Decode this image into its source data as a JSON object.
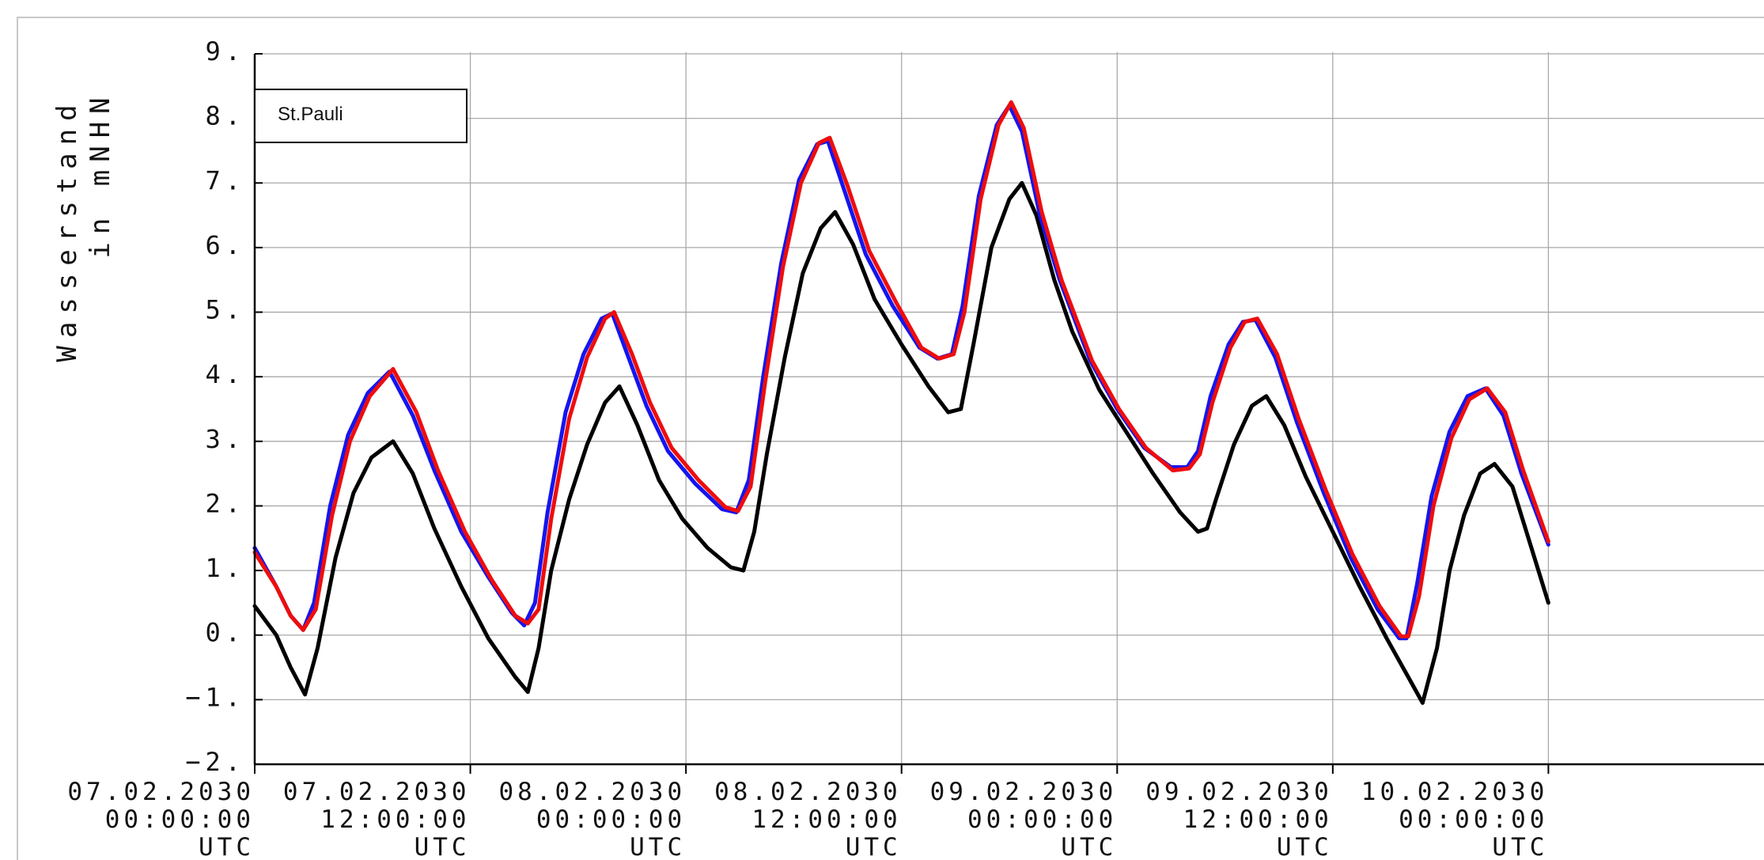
{
  "chart_data": {
    "type": "line",
    "title": "",
    "legend_box_label": "St.Pauli",
    "ylabel_line1": "Wasserstand",
    "ylabel_line2": "in mNHN",
    "ylim": [
      -2,
      9
    ],
    "yticks": [
      {
        "value": -2,
        "label": "−2."
      },
      {
        "value": -1,
        "label": "−1."
      },
      {
        "value": 0,
        "label": "0."
      },
      {
        "value": 1,
        "label": "1."
      },
      {
        "value": 2,
        "label": "2."
      },
      {
        "value": 3,
        "label": "3."
      },
      {
        "value": 4,
        "label": "4."
      },
      {
        "value": 5,
        "label": "5."
      },
      {
        "value": 6,
        "label": "6."
      },
      {
        "value": 7,
        "label": "7."
      },
      {
        "value": 8,
        "label": "8."
      },
      {
        "value": 9,
        "label": "9."
      }
    ],
    "xaxis_unit": "hours",
    "xlim": [
      0,
      84
    ],
    "xticks": [
      {
        "value": 0,
        "date": "07.02.2030",
        "time": "00:00:00",
        "tz": "UTC"
      },
      {
        "value": 12,
        "date": "07.02.2030",
        "time": "12:00:00",
        "tz": "UTC"
      },
      {
        "value": 24,
        "date": "08.02.2030",
        "time": "00:00:00",
        "tz": "UTC"
      },
      {
        "value": 36,
        "date": "08.02.2030",
        "time": "12:00:00",
        "tz": "UTC"
      },
      {
        "value": 48,
        "date": "09.02.2030",
        "time": "00:00:00",
        "tz": "UTC"
      },
      {
        "value": 60,
        "date": "09.02.2030",
        "time": "12:00:00",
        "tz": "UTC"
      },
      {
        "value": 72,
        "date": "10.02.2030",
        "time": "00:00:00",
        "tz": "UTC"
      }
    ],
    "grid": true,
    "series": [
      {
        "color": "#000000",
        "points": [
          [
            0.0,
            0.45
          ],
          [
            1.2,
            0.0
          ],
          [
            2.0,
            -0.5
          ],
          [
            2.8,
            -0.92
          ],
          [
            3.5,
            -0.2
          ],
          [
            4.5,
            1.2
          ],
          [
            5.5,
            2.2
          ],
          [
            6.5,
            2.75
          ],
          [
            7.7,
            3.0
          ],
          [
            8.8,
            2.5
          ],
          [
            10.0,
            1.65
          ],
          [
            11.5,
            0.75
          ],
          [
            13.0,
            -0.05
          ],
          [
            14.5,
            -0.65
          ],
          [
            15.2,
            -0.88
          ],
          [
            15.8,
            -0.2
          ],
          [
            16.5,
            1.0
          ],
          [
            17.5,
            2.1
          ],
          [
            18.5,
            2.95
          ],
          [
            19.5,
            3.6
          ],
          [
            20.3,
            3.85
          ],
          [
            21.3,
            3.25
          ],
          [
            22.5,
            2.4
          ],
          [
            23.8,
            1.8
          ],
          [
            25.2,
            1.35
          ],
          [
            26.5,
            1.05
          ],
          [
            27.2,
            1.0
          ],
          [
            27.8,
            1.6
          ],
          [
            28.5,
            2.8
          ],
          [
            29.5,
            4.3
          ],
          [
            30.5,
            5.6
          ],
          [
            31.5,
            6.3
          ],
          [
            32.3,
            6.55
          ],
          [
            33.3,
            6.05
          ],
          [
            34.5,
            5.2
          ],
          [
            36.0,
            4.5
          ],
          [
            37.5,
            3.85
          ],
          [
            38.6,
            3.45
          ],
          [
            39.3,
            3.5
          ],
          [
            40.0,
            4.5
          ],
          [
            41.0,
            6.0
          ],
          [
            42.0,
            6.75
          ],
          [
            42.7,
            7.0
          ],
          [
            43.5,
            6.5
          ],
          [
            44.5,
            5.5
          ],
          [
            45.5,
            4.7
          ],
          [
            47.0,
            3.8
          ],
          [
            48.5,
            3.15
          ],
          [
            50.0,
            2.5
          ],
          [
            51.5,
            1.9
          ],
          [
            52.5,
            1.6
          ],
          [
            53.0,
            1.65
          ],
          [
            53.5,
            2.1
          ],
          [
            54.5,
            2.95
          ],
          [
            55.5,
            3.55
          ],
          [
            56.3,
            3.7
          ],
          [
            57.3,
            3.25
          ],
          [
            58.5,
            2.45
          ],
          [
            60.0,
            1.6
          ],
          [
            61.5,
            0.75
          ],
          [
            63.0,
            -0.05
          ],
          [
            64.5,
            -0.8
          ],
          [
            65.0,
            -1.05
          ],
          [
            65.8,
            -0.2
          ],
          [
            66.5,
            1.0
          ],
          [
            67.3,
            1.85
          ],
          [
            68.2,
            2.5
          ],
          [
            69.0,
            2.65
          ],
          [
            70.0,
            2.3
          ],
          [
            71.0,
            1.4
          ],
          [
            72.0,
            0.5
          ]
        ]
      },
      {
        "color": "#1515ee",
        "points": [
          [
            0.0,
            1.35
          ],
          [
            1.2,
            0.75
          ],
          [
            2.0,
            0.3
          ],
          [
            2.7,
            0.08
          ],
          [
            3.3,
            0.5
          ],
          [
            4.2,
            2.0
          ],
          [
            5.2,
            3.1
          ],
          [
            6.3,
            3.75
          ],
          [
            7.5,
            4.08
          ],
          [
            8.8,
            3.4
          ],
          [
            10.0,
            2.55
          ],
          [
            11.5,
            1.6
          ],
          [
            13.0,
            0.9
          ],
          [
            14.3,
            0.35
          ],
          [
            15.0,
            0.15
          ],
          [
            15.6,
            0.5
          ],
          [
            16.3,
            1.9
          ],
          [
            17.3,
            3.45
          ],
          [
            18.3,
            4.35
          ],
          [
            19.3,
            4.9
          ],
          [
            19.9,
            4.98
          ],
          [
            20.8,
            4.3
          ],
          [
            21.8,
            3.55
          ],
          [
            23.0,
            2.85
          ],
          [
            24.5,
            2.35
          ],
          [
            26.0,
            1.95
          ],
          [
            26.8,
            1.9
          ],
          [
            27.5,
            2.4
          ],
          [
            28.3,
            4.0
          ],
          [
            29.3,
            5.75
          ],
          [
            30.3,
            7.05
          ],
          [
            31.3,
            7.6
          ],
          [
            31.9,
            7.65
          ],
          [
            32.8,
            6.9
          ],
          [
            34.0,
            5.9
          ],
          [
            35.5,
            5.1
          ],
          [
            37.0,
            4.45
          ],
          [
            38.0,
            4.28
          ],
          [
            38.8,
            4.35
          ],
          [
            39.4,
            5.1
          ],
          [
            40.3,
            6.8
          ],
          [
            41.3,
            7.9
          ],
          [
            42.0,
            8.2
          ],
          [
            42.7,
            7.8
          ],
          [
            43.7,
            6.5
          ],
          [
            44.8,
            5.5
          ],
          [
            46.5,
            4.25
          ],
          [
            48.0,
            3.5
          ],
          [
            49.5,
            2.9
          ],
          [
            51.0,
            2.6
          ],
          [
            51.9,
            2.6
          ],
          [
            52.5,
            2.85
          ],
          [
            53.2,
            3.7
          ],
          [
            54.2,
            4.5
          ],
          [
            55.0,
            4.85
          ],
          [
            55.7,
            4.88
          ],
          [
            56.8,
            4.3
          ],
          [
            58.0,
            3.3
          ],
          [
            59.5,
            2.2
          ],
          [
            61.0,
            1.2
          ],
          [
            62.5,
            0.4
          ],
          [
            63.7,
            -0.05
          ],
          [
            64.1,
            -0.05
          ],
          [
            64.7,
            0.8
          ],
          [
            65.5,
            2.15
          ],
          [
            66.5,
            3.15
          ],
          [
            67.5,
            3.7
          ],
          [
            68.5,
            3.82
          ],
          [
            69.5,
            3.4
          ],
          [
            70.5,
            2.5
          ],
          [
            72.0,
            1.4
          ]
        ]
      },
      {
        "color": "#ee0d0d",
        "points": [
          [
            0.0,
            1.28
          ],
          [
            1.2,
            0.75
          ],
          [
            2.0,
            0.3
          ],
          [
            2.7,
            0.08
          ],
          [
            3.4,
            0.4
          ],
          [
            4.3,
            1.85
          ],
          [
            5.3,
            3.0
          ],
          [
            6.4,
            3.7
          ],
          [
            7.7,
            4.12
          ],
          [
            9.0,
            3.45
          ],
          [
            10.2,
            2.55
          ],
          [
            11.7,
            1.6
          ],
          [
            13.2,
            0.85
          ],
          [
            14.5,
            0.3
          ],
          [
            15.2,
            0.18
          ],
          [
            15.8,
            0.4
          ],
          [
            16.5,
            1.8
          ],
          [
            17.5,
            3.35
          ],
          [
            18.5,
            4.3
          ],
          [
            19.5,
            4.9
          ],
          [
            20.0,
            5.0
          ],
          [
            21.0,
            4.35
          ],
          [
            22.0,
            3.6
          ],
          [
            23.2,
            2.9
          ],
          [
            24.7,
            2.4
          ],
          [
            26.2,
            1.98
          ],
          [
            26.9,
            1.92
          ],
          [
            27.6,
            2.3
          ],
          [
            28.4,
            3.9
          ],
          [
            29.4,
            5.7
          ],
          [
            30.4,
            7.0
          ],
          [
            31.4,
            7.62
          ],
          [
            32.0,
            7.7
          ],
          [
            33.0,
            6.95
          ],
          [
            34.2,
            5.95
          ],
          [
            35.7,
            5.15
          ],
          [
            37.1,
            4.45
          ],
          [
            38.1,
            4.28
          ],
          [
            38.9,
            4.35
          ],
          [
            39.5,
            5.0
          ],
          [
            40.4,
            6.75
          ],
          [
            41.4,
            7.9
          ],
          [
            42.1,
            8.25
          ],
          [
            42.8,
            7.85
          ],
          [
            43.8,
            6.55
          ],
          [
            44.9,
            5.5
          ],
          [
            46.6,
            4.25
          ],
          [
            48.1,
            3.5
          ],
          [
            49.6,
            2.9
          ],
          [
            51.1,
            2.55
          ],
          [
            52.0,
            2.58
          ],
          [
            52.6,
            2.8
          ],
          [
            53.3,
            3.6
          ],
          [
            54.3,
            4.45
          ],
          [
            55.1,
            4.85
          ],
          [
            55.8,
            4.9
          ],
          [
            56.9,
            4.35
          ],
          [
            58.1,
            3.35
          ],
          [
            59.6,
            2.25
          ],
          [
            61.1,
            1.25
          ],
          [
            62.6,
            0.45
          ],
          [
            63.8,
            -0.02
          ],
          [
            64.2,
            -0.02
          ],
          [
            64.8,
            0.6
          ],
          [
            65.6,
            2.0
          ],
          [
            66.6,
            3.05
          ],
          [
            67.6,
            3.65
          ],
          [
            68.6,
            3.82
          ],
          [
            69.6,
            3.45
          ],
          [
            70.6,
            2.55
          ],
          [
            72.0,
            1.45
          ]
        ]
      }
    ]
  }
}
